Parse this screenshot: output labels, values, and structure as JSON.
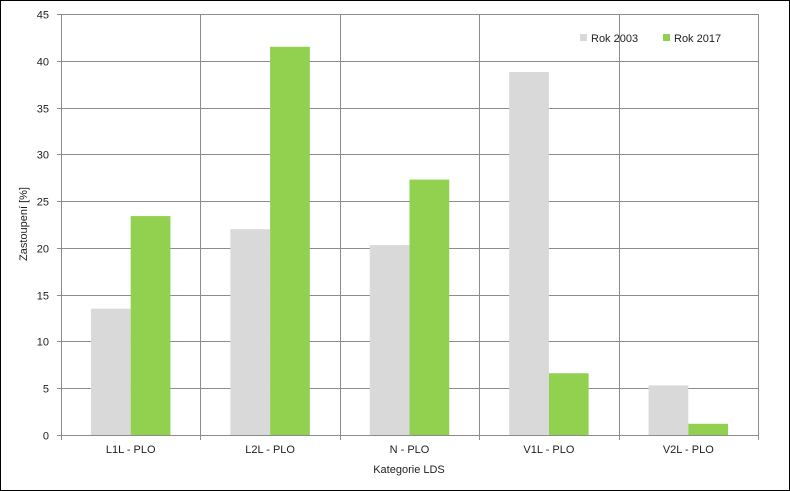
{
  "chart_data": {
    "type": "bar",
    "title": "",
    "xlabel": "Kategorie LDS",
    "ylabel": "Zastoupení [%]",
    "ylim": [
      0,
      45
    ],
    "yticks": [
      0,
      5,
      10,
      15,
      20,
      25,
      30,
      35,
      40,
      45
    ],
    "categories": [
      "L1L - PLO",
      "L2L - PLO",
      "N - PLO",
      "V1L - PLO",
      "V2L - PLO"
    ],
    "series": [
      {
        "name": "Rok 2003",
        "color": "#d9d9d9",
        "values": [
          13.5,
          22.0,
          20.3,
          38.8,
          5.3
        ]
      },
      {
        "name": "Rok 2017",
        "color": "#92d050",
        "values": [
          23.4,
          41.5,
          27.3,
          6.6,
          1.2
        ]
      }
    ],
    "grid": true,
    "legend_position": "top-right"
  }
}
